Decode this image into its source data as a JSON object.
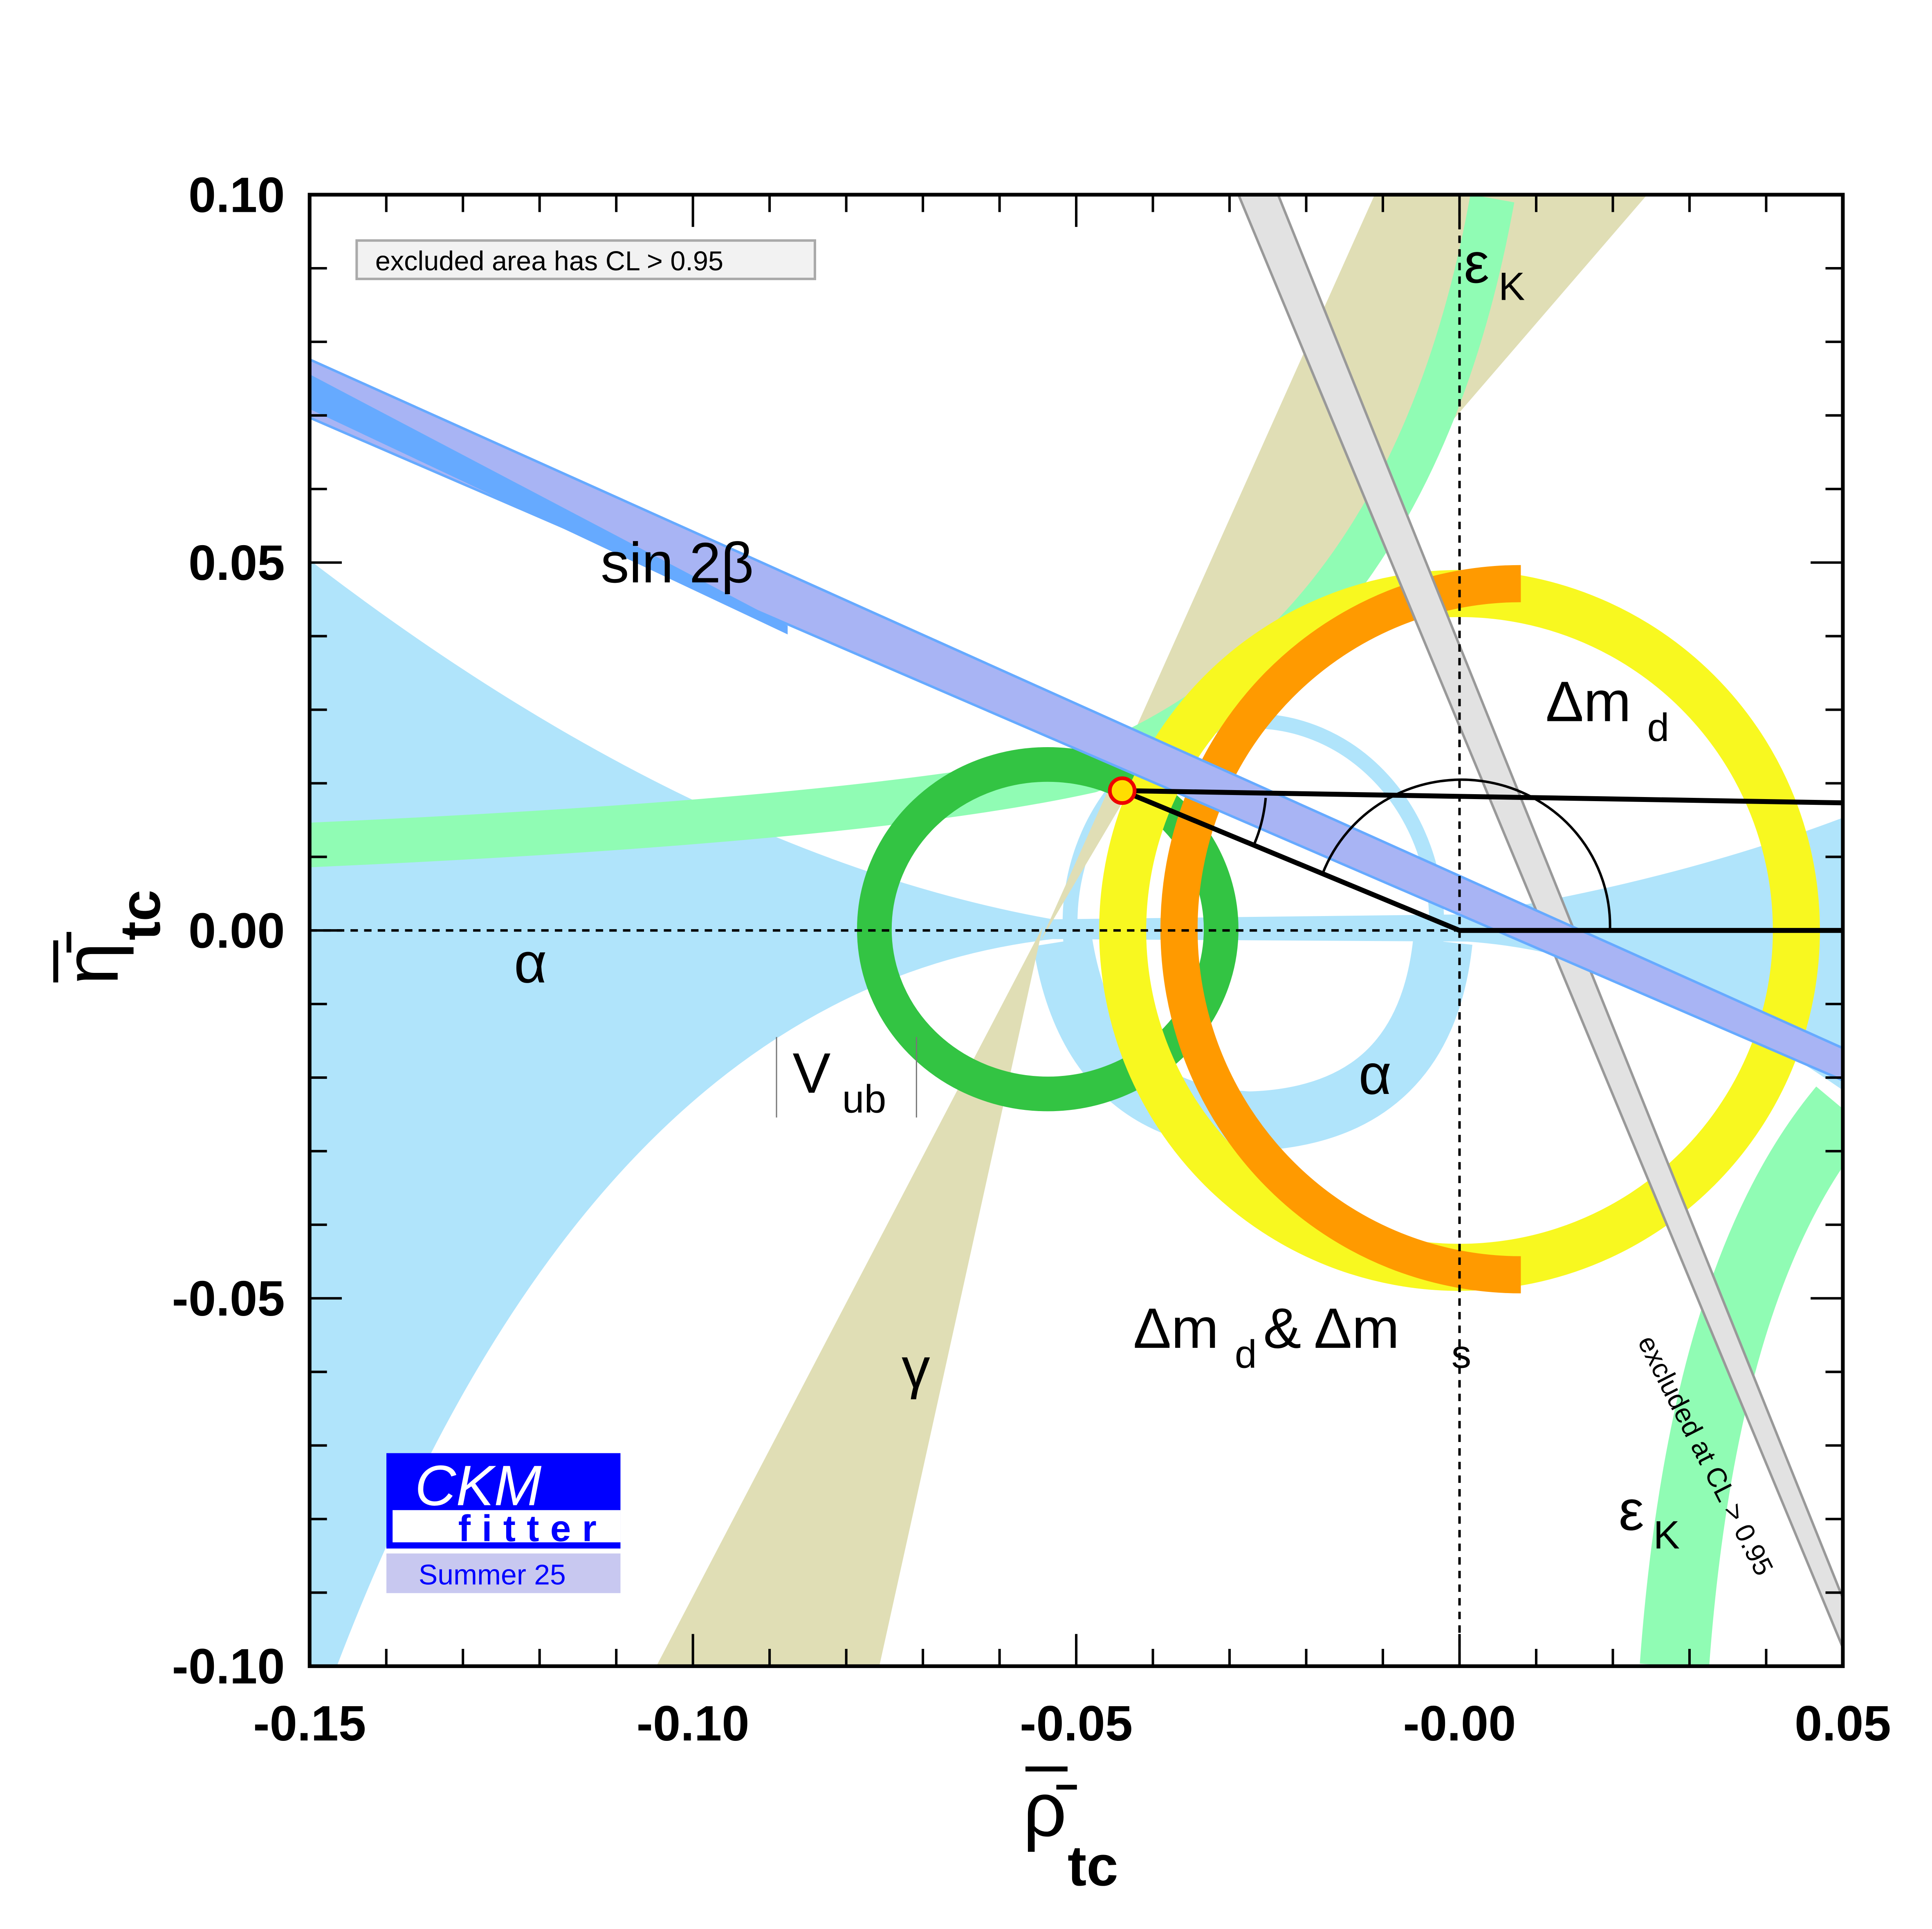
{
  "chart_data": {
    "type": "scatter",
    "xlabel": "ρ̄",
    "xlabel_sub": "tc",
    "ylabel": "η̄",
    "ylabel_sub": "tc",
    "xlim": [
      -0.15,
      0.05
    ],
    "ylim": [
      -0.1,
      0.1
    ],
    "x_ticks": [
      "-0.15",
      "-0.10",
      "-0.05",
      "-0.00",
      "0.05"
    ],
    "x_tick_values": [
      -0.15,
      -0.1,
      -0.05,
      0.0,
      0.05
    ],
    "y_ticks": [
      "-0.10",
      "-0.05",
      "0.00",
      "0.05",
      "0.10"
    ],
    "y_tick_values": [
      -0.1,
      -0.05,
      0.0,
      0.05,
      0.1
    ],
    "minor_tick_step": 0.01,
    "grid": false,
    "apex": {
      "x": -0.044,
      "y": 0.019
    },
    "legend_box": "excluded area has CL > 0.95",
    "constraints": [
      {
        "name": "alpha",
        "label": "α",
        "color": "#b0e4fb"
      },
      {
        "name": "sin2beta",
        "label": "sin 2β",
        "color": "#a8b4f4",
        "inner_color": "#66aaff"
      },
      {
        "name": "epsK",
        "label": "ε",
        "sub": "K",
        "color": "#90fcb4"
      },
      {
        "name": "Vub",
        "label": "V",
        "sub": "ub",
        "color": "#33c443"
      },
      {
        "name": "dmd",
        "label": "Δm",
        "sub": "d",
        "color": "#f8f820"
      },
      {
        "name": "dmd_dms",
        "label": "Δm",
        "sub": "d",
        "label2": " & Δm",
        "sub2": "s",
        "color": "#ff9a00"
      },
      {
        "name": "gamma",
        "label": "γ",
        "color": "#e0deb5"
      },
      {
        "name": "epsK_excluded",
        "label": "excluded at CL > 0.95",
        "color": "#e2e2e2"
      }
    ],
    "logo": {
      "line1": "CKM",
      "line2": "fitter",
      "line3": "Summer 25",
      "color": "#0000ff",
      "band_color": "#c8c8f0"
    }
  }
}
